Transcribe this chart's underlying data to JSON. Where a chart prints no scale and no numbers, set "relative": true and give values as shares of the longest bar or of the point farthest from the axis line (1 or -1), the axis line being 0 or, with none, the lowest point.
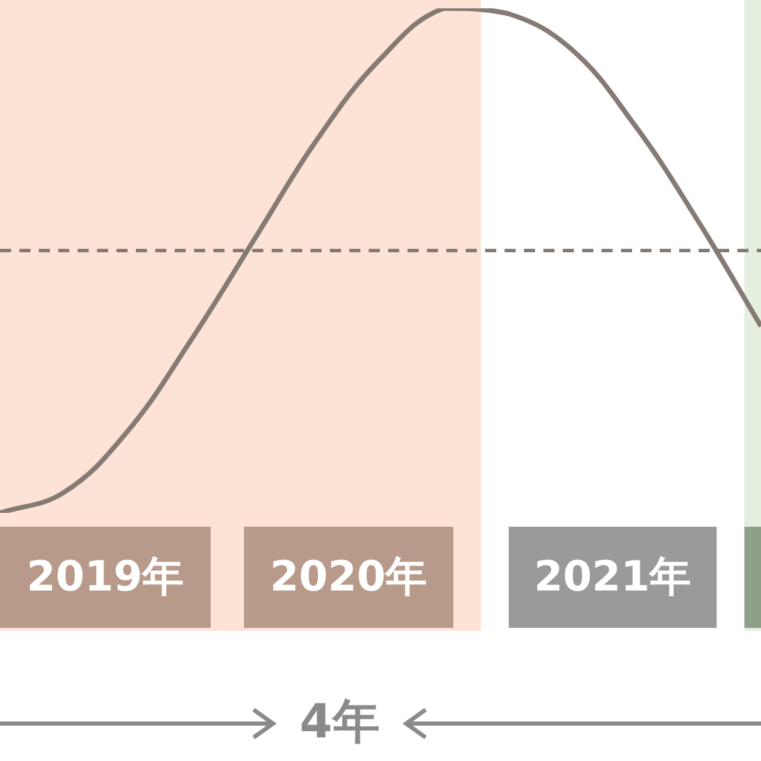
{
  "chart_data": {
    "type": "line",
    "relative": true,
    "categories": [
      null,
      null,
      null,
      null,
      null,
      null,
      null,
      null,
      null,
      null,
      null,
      null,
      null
    ],
    "series": [
      {
        "color": "#857a74",
        "values": [
          0,
          0.04,
          0.16,
          0.34,
          0.54,
          0.74,
          0.9,
          1,
          0.99,
          0.92,
          0.77,
          0.58,
          0.37
        ]
      }
    ],
    "ref_lines": [
      {
        "axis": "y",
        "value": 0.52,
        "color": "#857a74",
        "line_style": "dashed"
      }
    ],
    "annotations": [
      "2019年",
      "2020年",
      "2021年",
      "4年"
    ],
    "marker": "none",
    "line_style": "solid",
    "legend": false
  }
}
